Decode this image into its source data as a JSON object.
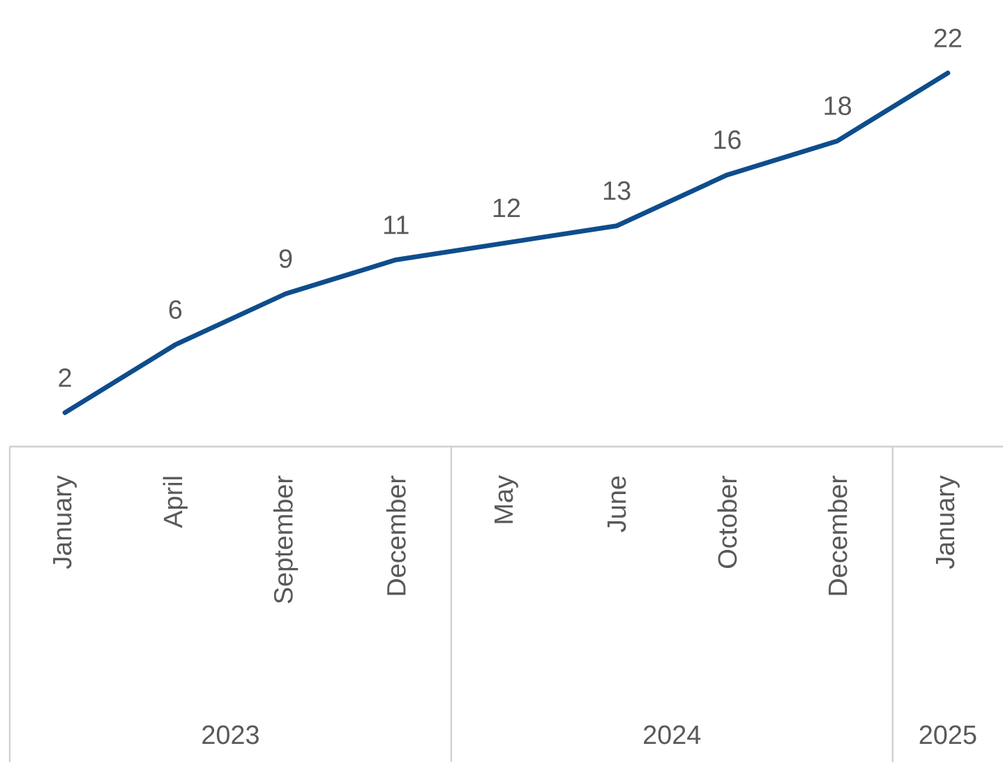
{
  "chart_data": {
    "type": "line",
    "categories": [
      "January",
      "April",
      "September",
      "December",
      "May",
      "June",
      "October",
      "December",
      "January"
    ],
    "values": [
      2,
      6,
      9,
      11,
      12,
      13,
      16,
      18,
      22
    ],
    "color": "#0e4d8c",
    "data_labels": true,
    "annotations": [
      "2023",
      "2024",
      "2025"
    ]
  }
}
